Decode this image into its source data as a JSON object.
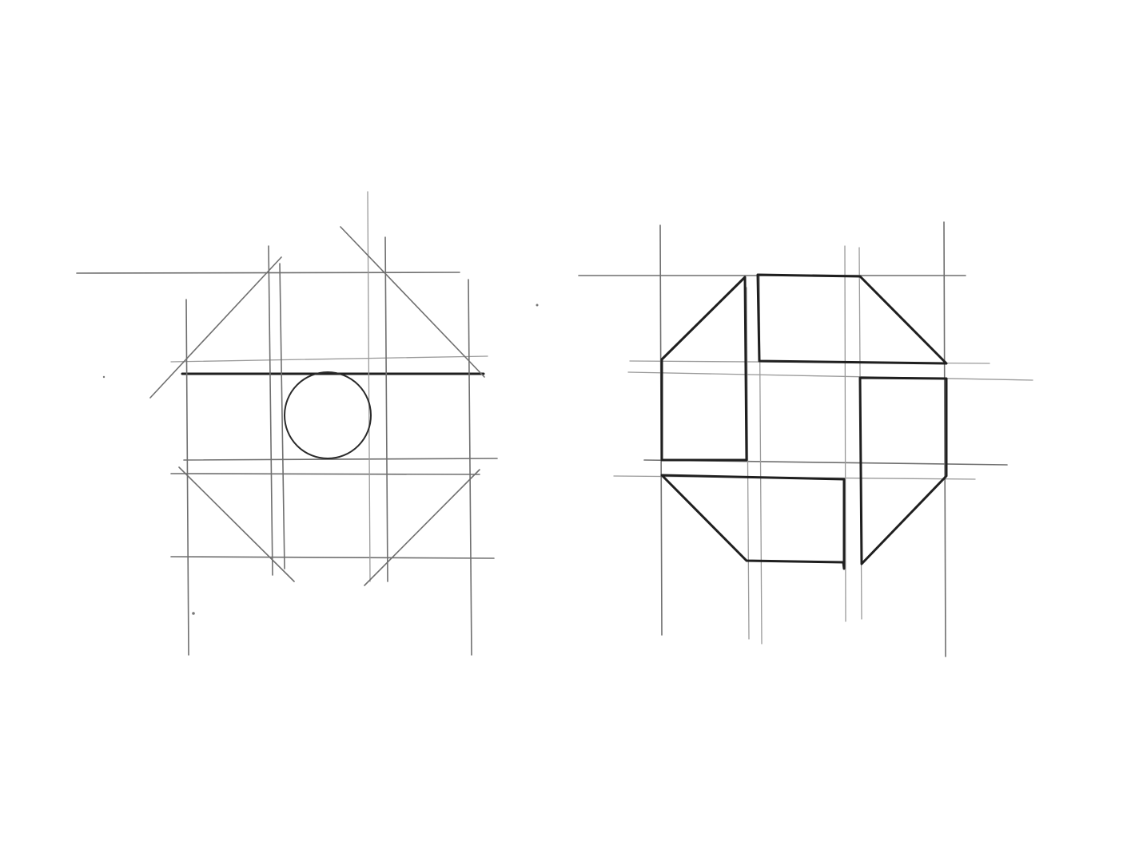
{
  "figure": {
    "panels": [
      {
        "id": "left",
        "content": "construction-grid-with-circle"
      },
      {
        "id": "right",
        "content": "octagonal-mark-with-interlocking-squares"
      }
    ],
    "colors": {
      "background": "#ffffff",
      "pencil_guides": "#6f6f6f",
      "pencil_light": "#9a9a9a",
      "ink": "#1f1f1f"
    }
  }
}
